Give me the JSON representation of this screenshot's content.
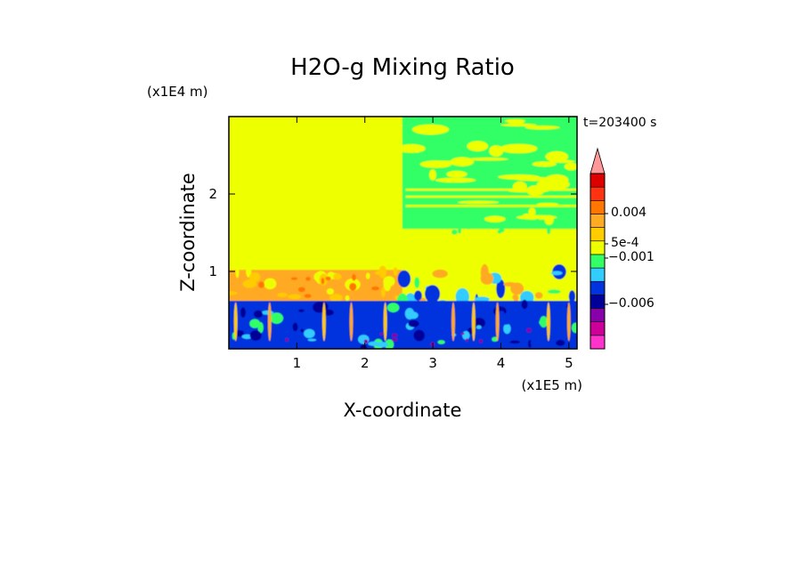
{
  "chart_data": {
    "type": "heatmap",
    "title": "H2O-g Mixing Ratio",
    "xlabel": "X-coordinate",
    "ylabel": "Z-coordinate",
    "x_unit": "(x1E5 m)",
    "y_unit": "(x1E4 m)",
    "time_label": "t=203400 s",
    "xlim": [
      0,
      5.12
    ],
    "ylim": [
      0,
      3.0
    ],
    "x_ticks": [
      "1",
      "2",
      "3",
      "4",
      "5"
    ],
    "y_ticks": [
      "1",
      "2"
    ],
    "colorbar": {
      "colors": [
        "#ff33cc",
        "#cc0099",
        "#8800aa",
        "#000099",
        "#0033dd",
        "#33ccff",
        "#33ff66",
        "#eeff00",
        "#ffcc00",
        "#ffaa22",
        "#ff7700",
        "#ff3311",
        "#dd0000",
        "#ff9999"
      ],
      "labels": [
        "0.004",
        "5e-4",
        "−0.001",
        "−0.006"
      ],
      "extend": "max"
    },
    "regions": [
      {
        "name": "upper-left-yellow",
        "x": [
          0,
          2.55
        ],
        "z": [
          1.0,
          3.0
        ],
        "level": "#eeff00"
      },
      {
        "name": "upper-right-streaks",
        "x": [
          2.55,
          5.12
        ],
        "z": [
          1.5,
          3.0
        ],
        "level": "#33ff66"
      },
      {
        "name": "mid-left-orange",
        "x": [
          0,
          2.55
        ],
        "z": [
          0.6,
          1.0
        ],
        "level": "#ffaa22"
      },
      {
        "name": "lower-blue",
        "x": [
          0,
          5.12
        ],
        "z": [
          0,
          0.6
        ],
        "level": "#0033dd"
      }
    ]
  }
}
